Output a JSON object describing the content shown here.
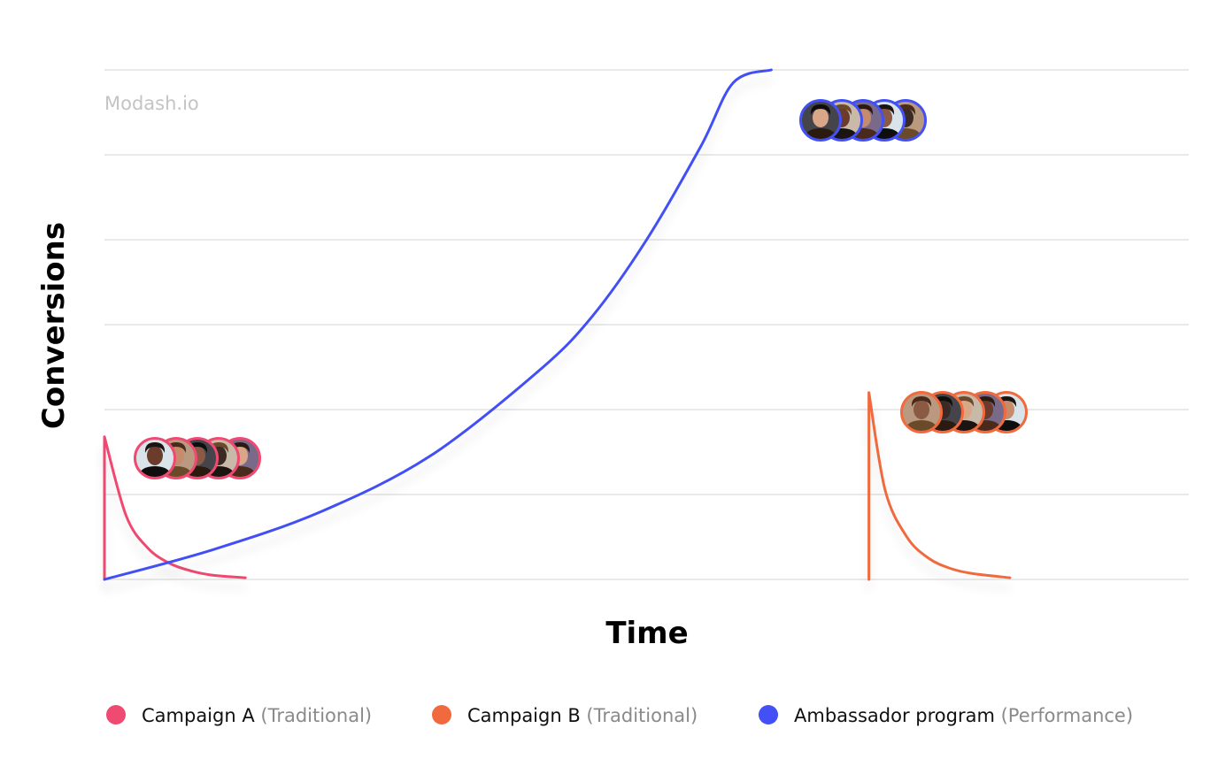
{
  "watermark": "Modash.io",
  "chart_data": {
    "type": "line",
    "xlabel": "Time",
    "ylabel": "Conversions",
    "grid": true,
    "legend_position": "bottom",
    "series": [
      {
        "name": "Campaign A",
        "subtitle": "(Traditional)",
        "color": "#ef4a72",
        "avatar_group": "campaign-a",
        "x": [
          0,
          0,
          2,
          4,
          6,
          8,
          10,
          13
        ],
        "y": [
          0,
          1.68,
          0.75,
          0.37,
          0.19,
          0.1,
          0.05,
          0.02
        ]
      },
      {
        "name": "Campaign B",
        "subtitle": "(Traditional)",
        "color": "#f06a3e",
        "avatar_group": "campaign-b",
        "x": [
          70.5,
          70.5,
          72,
          74,
          76,
          78,
          80,
          83.5
        ],
        "y": [
          0,
          2.2,
          1.05,
          0.5,
          0.25,
          0.13,
          0.07,
          0.02
        ]
      },
      {
        "name": "Ambassador program",
        "subtitle": "(Performance)",
        "color": "#4350f5",
        "avatar_group": "ambassador",
        "x": [
          0,
          10,
          20,
          30,
          40,
          45,
          50,
          55,
          58,
          61.5
        ],
        "y": [
          0,
          0.35,
          0.8,
          1.45,
          2.45,
          3.1,
          4.0,
          5.1,
          5.85,
          5.85
        ]
      }
    ],
    "avatars": {
      "campaign-a": {
        "count": 5,
        "border": "#ef4a72"
      },
      "campaign-b": {
        "count": 5,
        "border": "#f06a3e"
      },
      "ambassador": {
        "count": 5,
        "border": "#4350f5"
      }
    }
  }
}
